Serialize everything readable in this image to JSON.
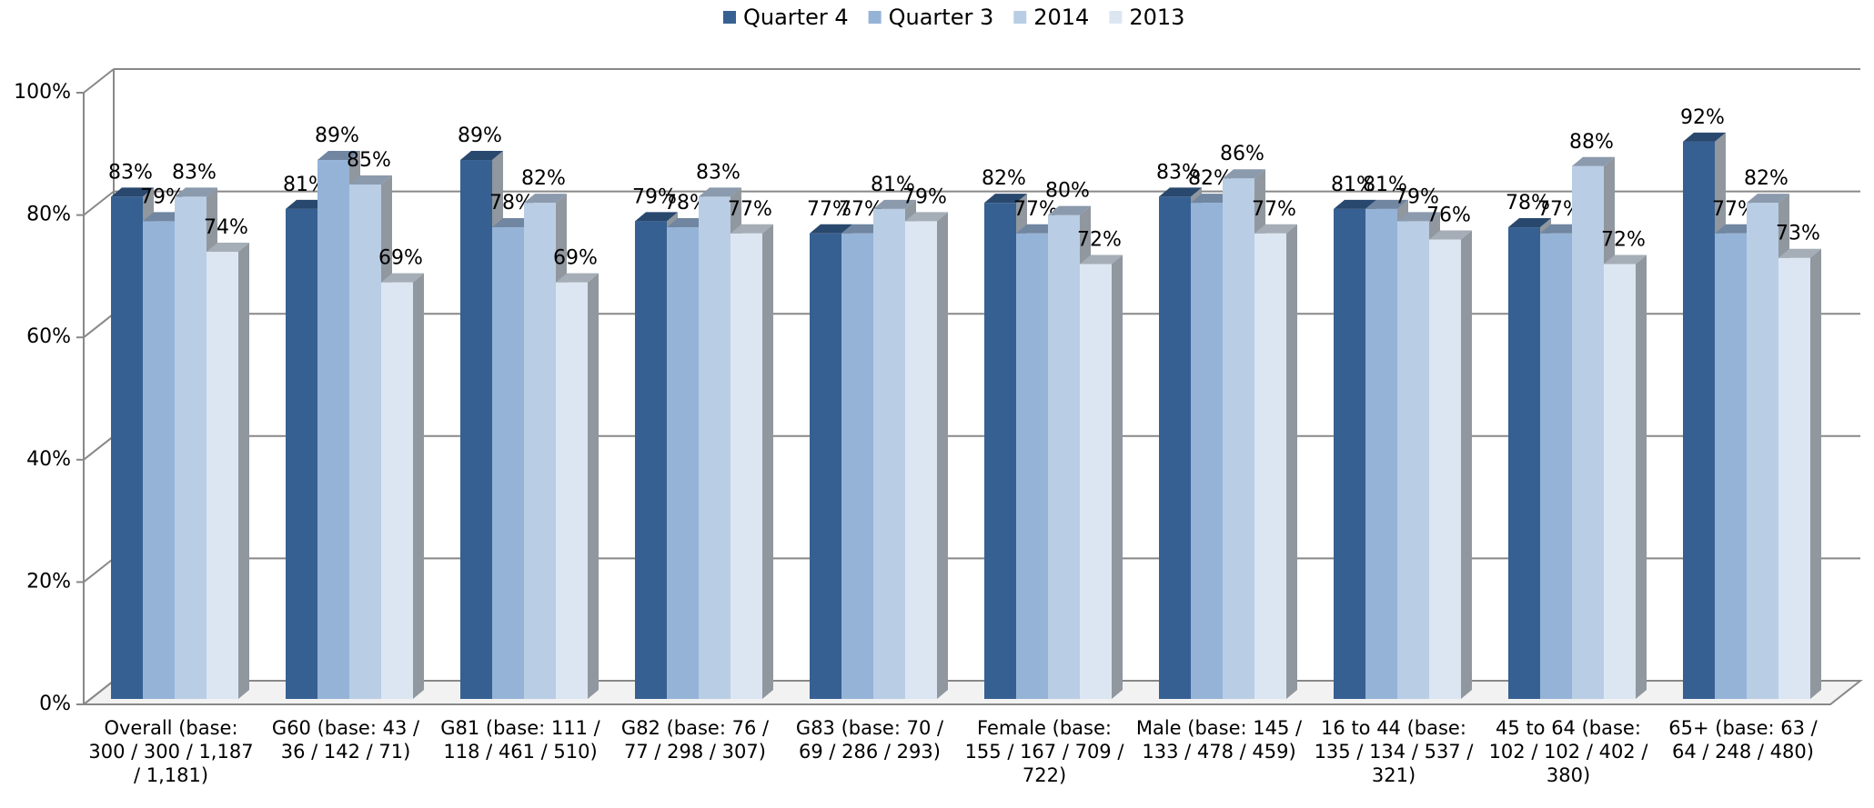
{
  "chart_data": {
    "type": "bar3d",
    "categories": [
      "Overall (base: 300 / 300 / 1,187 / 1,181)",
      "G60 (base: 43 / 36 / 142 / 71)",
      "G81 (base: 111 / 118 / 461 / 510)",
      "G82 (base: 76 / 77 / 298 / 307)",
      "G83 (base: 70 / 69 / 286 / 293)",
      "Female (base: 155 / 167 / 709 / 722)",
      "Male (base: 145 / 133 / 478 / 459)",
      "16 to 44 (base: 135 / 134 / 537 / 321)",
      "45 to 64 (base: 102 / 102 / 402 / 380)",
      "65+ (base: 63 / 64 / 248 / 480)"
    ],
    "series": [
      {
        "name": "Quarter 4",
        "color": "#376092",
        "values": [
          83,
          81,
          89,
          79,
          77,
          82,
          83,
          81,
          78,
          92
        ],
        "value_labels": [
          "83%",
          "81%",
          "89%",
          "79%",
          "77%",
          "82%",
          "83%",
          "81%",
          "78%",
          "92%"
        ]
      },
      {
        "name": "Quarter 3",
        "color": "#95b3d7",
        "values": [
          79,
          89,
          78,
          78,
          77,
          77,
          82,
          81,
          77,
          77
        ],
        "value_labels": [
          "79%",
          "89%",
          "78%",
          "78%",
          "77%",
          "77%",
          "82%",
          "81%",
          "77%",
          "77%"
        ]
      },
      {
        "name": "2014",
        "color": "#b9cde5",
        "values": [
          83,
          85,
          82,
          83,
          81,
          80,
          86,
          79,
          88,
          82
        ],
        "value_labels": [
          "83%",
          "85%",
          "82%",
          "83%",
          "81%",
          "80%",
          "86%",
          "79%",
          "88%",
          "82%"
        ]
      },
      {
        "name": "2013",
        "color": "#dce6f2",
        "values": [
          74,
          69,
          69,
          77,
          79,
          72,
          77,
          76,
          72,
          73
        ],
        "value_labels": [
          "74%",
          "69%",
          "69%",
          "77%",
          "79%",
          "72%",
          "77%",
          "76%",
          "72%",
          "73%"
        ]
      }
    ],
    "ylim": [
      0,
      100
    ],
    "yticks": [
      {
        "value": 0,
        "label": "0%"
      },
      {
        "value": 20,
        "label": "20%"
      },
      {
        "value": 40,
        "label": "40%"
      },
      {
        "value": 60,
        "label": "60%"
      },
      {
        "value": 80,
        "label": "80%"
      },
      {
        "value": 100,
        "label": "100%"
      }
    ],
    "grid": true,
    "legend": "top"
  }
}
